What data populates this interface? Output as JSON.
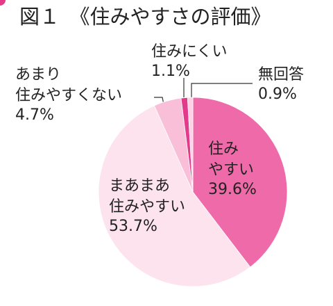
{
  "chart_data": {
    "type": "pie",
    "title": "図１　《住みやすさの評価》",
    "categories": [
      [
        "住み",
        "やすい"
      ],
      [
        "まあまあ",
        "住みやすい"
      ],
      [
        "あまり",
        "住みやすくない"
      ],
      [
        "住みにくい"
      ],
      [
        "無回答"
      ]
    ],
    "values": [
      39.6,
      53.7,
      4.7,
      1.1,
      0.9
    ],
    "value_labels": [
      "39.6%",
      "53.7%",
      "4.7%",
      "1.1%",
      "0.9%"
    ],
    "colors": [
      "#ef6aa8",
      "#fde3ee",
      "#f9bfd8",
      "#e33a8c",
      "#fbd3e4"
    ]
  }
}
